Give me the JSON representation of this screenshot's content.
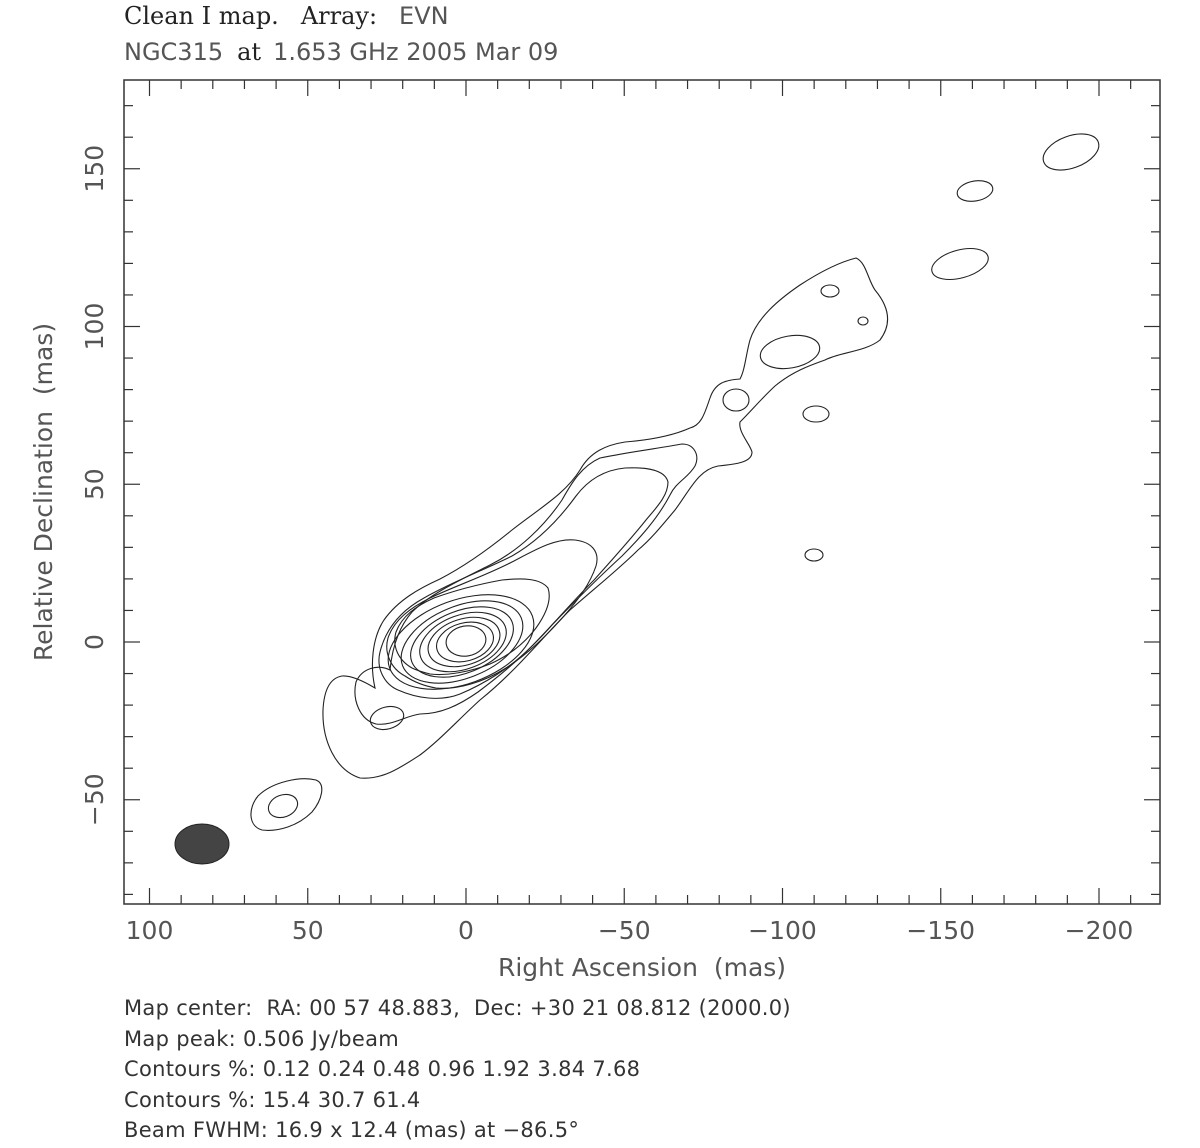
{
  "header": {
    "title": "Clean I map.",
    "array_label": "Array:",
    "array_value": "EVN",
    "source": "NGC315",
    "at_word": "at",
    "freq_date": "1.653 GHz 2005 Mar 09"
  },
  "chart_data": {
    "type": "contour",
    "xlabel": "Right Ascension  (mas)",
    "ylabel": "Relative Declination  (mas)",
    "xlim": [
      110,
      -220
    ],
    "ylim": [
      -83,
      178
    ],
    "x_reversed": true,
    "xticks": [
      100,
      50,
      0,
      -50,
      -100,
      -150,
      -200
    ],
    "xtick_labels": [
      "100",
      "50",
      "0",
      "−50",
      "−100",
      "−150",
      "−200"
    ],
    "yticks": [
      -50,
      0,
      50,
      100,
      150
    ],
    "ytick_labels": [
      "−50",
      "0",
      "50",
      "100",
      "150"
    ],
    "beam": {
      "x": 84,
      "y": -64,
      "major_mas": 16.9,
      "minor_mas": 12.4,
      "pa_deg": -86.5,
      "color": "#444444"
    },
    "core": {
      "x": -1,
      "y": -1
    },
    "contour_levels_percent": [
      0.12,
      0.24,
      0.48,
      0.96,
      1.92,
      3.84,
      7.68,
      15.4,
      30.7,
      61.4
    ],
    "peak_jy_per_beam": 0.506,
    "jet_position_angle_deg": -55,
    "isolated_components": [
      {
        "x": 58,
        "y": -52
      },
      {
        "x": 27,
        "y": -24
      },
      {
        "x": -85,
        "y": 76
      },
      {
        "x": -111,
        "y": 72
      },
      {
        "x": -110,
        "y": 27
      },
      {
        "x": -113,
        "y": 93
      },
      {
        "x": -115,
        "y": 111
      },
      {
        "x": -126,
        "y": 102
      },
      {
        "x": -156,
        "y": 120
      },
      {
        "x": -161,
        "y": 143
      },
      {
        "x": -190,
        "y": 155
      }
    ]
  },
  "footer": {
    "map_center": "Map center:  RA: 00 57 48.883,  Dec: +30 21 08.812 (2000.0)",
    "map_peak": "Map peak: 0.506 Jy/beam",
    "contours_1": "Contours %: 0.12 0.24 0.48 0.96 1.92 3.84 7.68",
    "contours_2": "Contours %: 15.4 30.7 61.4",
    "beam": "Beam FWHM: 16.9 x 12.4 (mas) at −86.5°"
  }
}
